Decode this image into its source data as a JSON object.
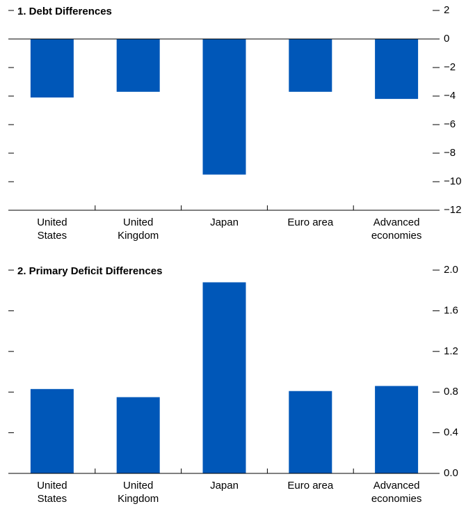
{
  "chart_data": [
    {
      "type": "bar",
      "title": "1. Debt Differences",
      "categories": [
        "United\nStates",
        "United\nKingdom",
        "Japan",
        "Euro area",
        "Advanced\neconomies"
      ],
      "values": [
        -4.1,
        -3.7,
        -9.5,
        -3.7,
        -4.2
      ],
      "color": "#0057b8",
      "ylim": [
        -12,
        2
      ],
      "yticks": [
        {
          "value": -12,
          "label": "−12"
        },
        {
          "value": -10,
          "label": "−10"
        },
        {
          "value": -8,
          "label": "−8"
        },
        {
          "value": -6,
          "label": "−6"
        },
        {
          "value": -4,
          "label": "−4"
        },
        {
          "value": -2,
          "label": "−2"
        },
        0,
        2
      ]
    },
    {
      "type": "bar",
      "title": "2. Primary Deficit Differences",
      "categories": [
        "United\nStates",
        "United\nKingdom",
        "Japan",
        "Euro area",
        "Advanced\neconomies"
      ],
      "values": [
        0.83,
        0.75,
        1.88,
        0.81,
        0.86
      ],
      "color": "#0057b8",
      "ylim": [
        0,
        2.0
      ],
      "yticks": [
        {
          "value": 0,
          "label": "0.0"
        },
        0.4,
        0.8,
        1.2,
        1.6,
        {
          "value": 2,
          "label": "2.0"
        }
      ]
    }
  ]
}
